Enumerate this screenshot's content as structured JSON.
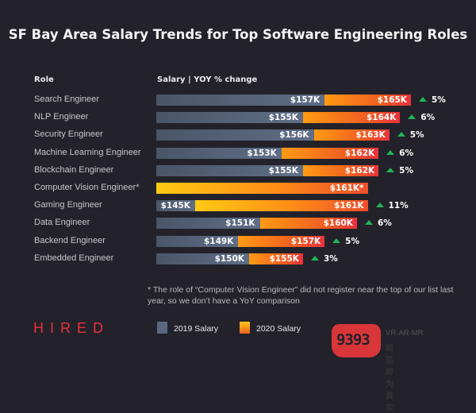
{
  "chart_data": {
    "type": "bar",
    "orientation": "horizontal",
    "stacked_comparison": true,
    "title": "SF Bay Area Salary Trends for Top Software Engineering Roles",
    "column_headers": {
      "role": "Role",
      "salary": "Salary  |  YOY % change"
    },
    "categories": [
      "Search Engineer",
      "NLP Engineer",
      "Security Engineer",
      "Machine Learning Engineer",
      "Blockchain Engineer",
      "Computer Vision Engineer*",
      "Gaming Engineer",
      "Data Engineer",
      "Backend Engineer",
      "Embedded Engineer"
    ],
    "series": [
      {
        "name": "2019 Salary",
        "unit": "$K",
        "values": [
          157,
          155,
          156,
          153,
          155,
          null,
          145,
          151,
          149,
          150
        ]
      },
      {
        "name": "2020 Salary",
        "unit": "$K",
        "values": [
          165,
          164,
          163,
          162,
          162,
          161,
          161,
          160,
          157,
          155
        ]
      }
    ],
    "yoy_change_percent": [
      5,
      6,
      5,
      6,
      5,
      null,
      11,
      6,
      5,
      3
    ],
    "labels_2019": [
      "$157K",
      "$155K",
      "$156K",
      "$153K",
      "$155K",
      "",
      "$145K",
      "$151K",
      "$149K",
      "$150K"
    ],
    "labels_2020": [
      "$165K",
      "$164K",
      "$163K",
      "$162K",
      "$162K",
      "$161K*",
      "$161K",
      "$160K",
      "$157K",
      "$155K"
    ],
    "labels_yoy": [
      "5%",
      "6%",
      "5%",
      "6%",
      "5%",
      "",
      "11%",
      "6%",
      "5%",
      "3%"
    ],
    "legend": [
      "2019 Salary",
      "2020 Salary"
    ],
    "legend_position": "bottom",
    "grid": false,
    "colors": {
      "salary_2019": "#5a6780",
      "salary_2020_start": "#ff9a12",
      "salary_2020_end": "#e8323c",
      "yoy_up": "#22b45a"
    }
  },
  "footnote": "* The role of “Computer Vision Engineer” did not register near the top of our list last year, so we don’t have a YoY comparison",
  "brand": "HIRED",
  "watermark": {
    "mark": "9393",
    "line1": "VR·AR·MR",
    "line2": "眼见即为真实"
  }
}
